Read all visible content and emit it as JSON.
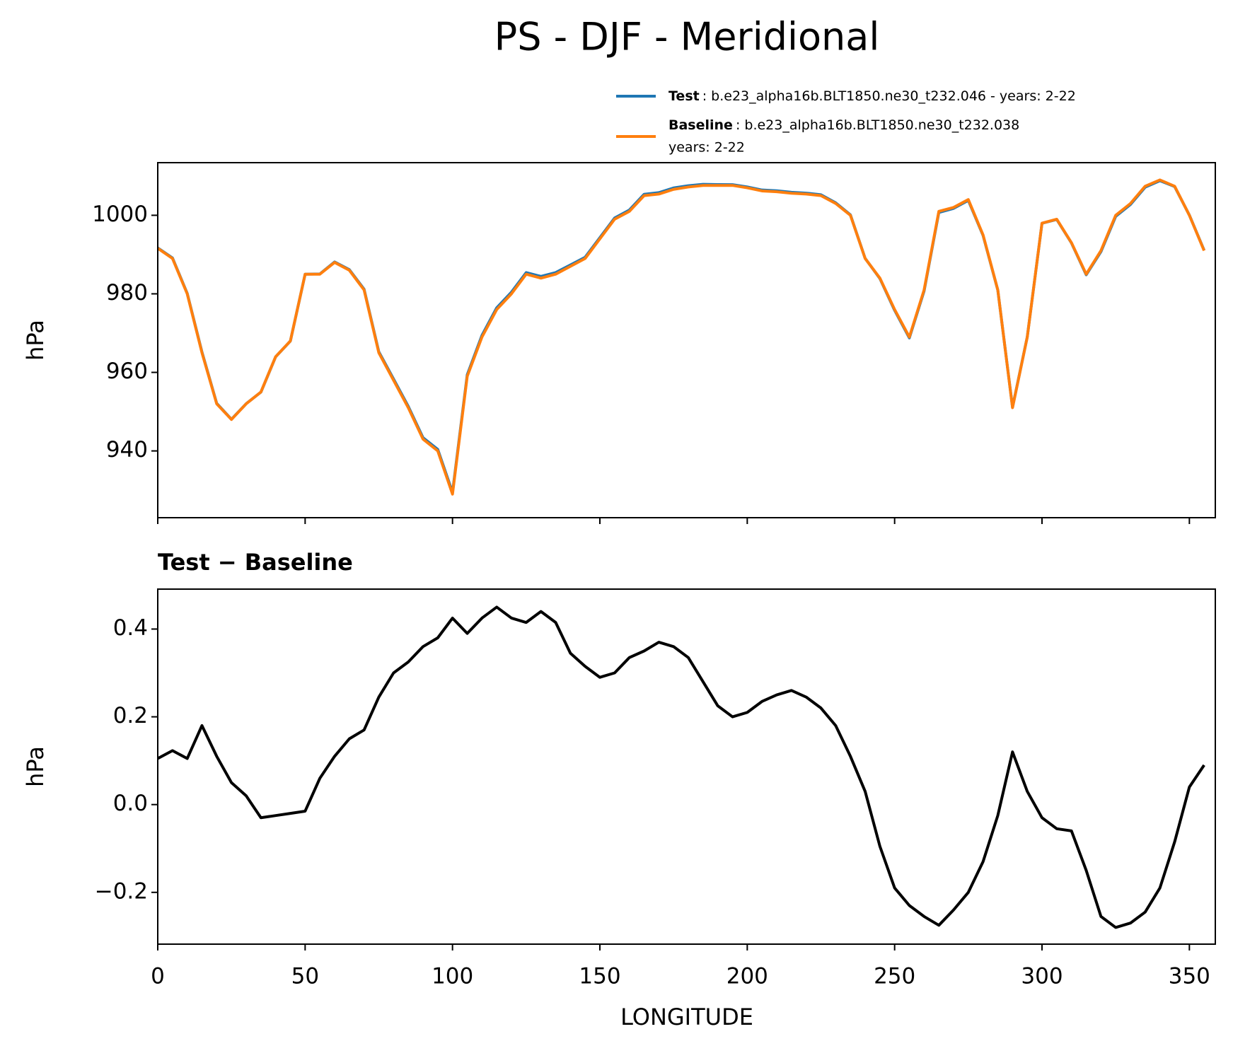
{
  "chart_data": [
    {
      "type": "line",
      "title": "PS - DJF - Meridional",
      "ylabel": "hPa",
      "x": [
        0,
        5,
        10,
        15,
        20,
        25,
        30,
        35,
        40,
        45,
        50,
        55,
        60,
        65,
        70,
        75,
        80,
        85,
        90,
        95,
        100,
        105,
        110,
        115,
        120,
        125,
        130,
        135,
        140,
        145,
        150,
        155,
        160,
        165,
        170,
        175,
        180,
        185,
        190,
        195,
        200,
        205,
        210,
        215,
        220,
        225,
        230,
        235,
        240,
        245,
        250,
        255,
        260,
        265,
        270,
        275,
        280,
        285,
        290,
        295,
        300,
        305,
        310,
        315,
        320,
        325,
        330,
        335,
        340,
        345,
        350,
        355
      ],
      "series": [
        {
          "name": "Test",
          "description": ": b.e23_alpha16b.BLT1850.ne30_t232.046 - years: 2-22",
          "color": "#1f77b4",
          "values": [
            991.705,
            989.123,
            980.105,
            965.18,
            952.11,
            948.05,
            952.02,
            954.97,
            963.975,
            967.98,
            984.985,
            985.06,
            988.11,
            986.15,
            981.17,
            965.245,
            958.3,
            951.325,
            943.36,
            940.38,
            929.425,
            959.39,
            969.425,
            976.45,
            980.425,
            985.415,
            984.44,
            985.415,
            987.345,
            989.315,
            994.29,
            999.3,
            1001.335,
            1005.35,
            1005.77,
            1006.96,
            1007.535,
            1007.88,
            1007.825,
            1007.8,
            1007.21,
            1006.435,
            1006.25,
            1005.86,
            1005.645,
            1005.22,
            1003.18,
            1000.11,
            989.03,
            983.905,
            975.81,
            968.77,
            980.745,
            1000.725,
            1001.76,
            1003.8,
            994.87,
            980.975,
            951.12,
            969.03,
            997.97,
            998.945,
            992.94,
            984.85,
            990.745,
            999.72,
            1002.73,
            1007.155,
            1008.81,
            1007.315,
            1000.04,
            991.09
          ]
        },
        {
          "name": "Baseline",
          "description": ": b.e23_alpha16b.BLT1850.ne30_t232.038",
          "description_line2": "years: 2-22",
          "color": "#ff7f0e",
          "values": [
            991.6,
            989,
            980,
            965,
            952,
            948,
            952,
            955,
            964,
            968,
            985,
            985,
            988,
            986,
            981,
            965,
            958,
            951,
            943,
            940,
            929,
            959,
            969,
            976,
            980,
            985,
            984,
            985,
            987,
            989,
            994,
            999,
            1001,
            1005,
            1005.4,
            1006.6,
            1007.2,
            1007.6,
            1007.6,
            1007.6,
            1007,
            1006.2,
            1006,
            1005.6,
            1005.4,
            1005,
            1003,
            1000,
            989,
            984,
            976,
            969,
            981,
            1001,
            1002,
            1004,
            995,
            981,
            951,
            969,
            998,
            999,
            993,
            985,
            991,
            1000,
            1003,
            1007.4,
            1009,
            1007.4,
            1000,
            991
          ]
        }
      ],
      "xlim": [
        0,
        358.8
      ],
      "ylim": [
        923,
        1013.4
      ],
      "yticks": [
        940,
        960,
        980,
        1000
      ]
    },
    {
      "type": "line",
      "title": "Test − Baseline",
      "ylabel": "hPa",
      "xlabel": "LONGITUDE",
      "x": [
        0,
        5,
        10,
        15,
        20,
        25,
        30,
        35,
        40,
        45,
        50,
        55,
        60,
        65,
        70,
        75,
        80,
        85,
        90,
        95,
        100,
        105,
        110,
        115,
        120,
        125,
        130,
        135,
        140,
        145,
        150,
        155,
        160,
        165,
        170,
        175,
        180,
        185,
        190,
        195,
        200,
        205,
        210,
        215,
        220,
        225,
        230,
        235,
        240,
        245,
        250,
        255,
        260,
        265,
        270,
        275,
        280,
        285,
        290,
        295,
        300,
        305,
        310,
        315,
        320,
        325,
        330,
        335,
        340,
        345,
        350,
        355
      ],
      "series": [
        {
          "color": "#000000",
          "values": [
            0.105,
            0.123,
            0.105,
            0.18,
            0.11,
            0.05,
            0.02,
            -0.03,
            -0.025,
            -0.02,
            -0.015,
            0.06,
            0.11,
            0.15,
            0.17,
            0.245,
            0.3,
            0.325,
            0.36,
            0.38,
            0.425,
            0.39,
            0.425,
            0.45,
            0.425,
            0.415,
            0.44,
            0.415,
            0.345,
            0.315,
            0.29,
            0.3,
            0.335,
            0.35,
            0.37,
            0.36,
            0.335,
            0.28,
            0.225,
            0.2,
            0.21,
            0.235,
            0.25,
            0.26,
            0.245,
            0.22,
            0.18,
            0.11,
            0.03,
            -0.095,
            -0.19,
            -0.23,
            -0.255,
            -0.275,
            -0.24,
            -0.2,
            -0.13,
            -0.025,
            0.12,
            0.03,
            -0.03,
            -0.055,
            -0.06,
            -0.15,
            -0.255,
            -0.28,
            -0.27,
            -0.245,
            -0.19,
            -0.085,
            0.04,
            0.09
          ]
        }
      ],
      "xlim": [
        0,
        358.8
      ],
      "ylim": [
        -0.318,
        0.491
      ],
      "xticks": [
        0,
        50,
        100,
        150,
        200,
        250,
        300,
        350
      ],
      "yticks": [
        {
          "value": -0.2,
          "label": "−0.2"
        },
        {
          "value": 0,
          "label": "0.0"
        },
        0.2,
        0.4
      ]
    }
  ]
}
